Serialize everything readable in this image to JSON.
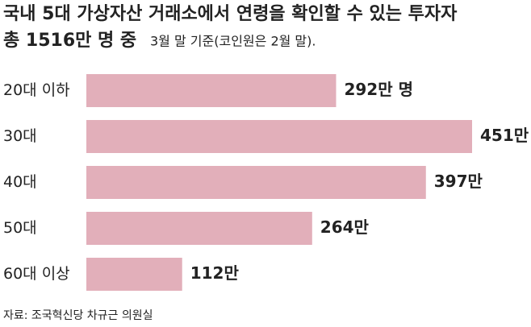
{
  "chart_data": {
    "type": "bar",
    "orientation": "horizontal",
    "title": [
      "국내 5대 가상자산 거래소에서 연령을 확인할 수 있는 투자자",
      "총 1516만 명 중"
    ],
    "subtitle": "3월 말 기준(코인원은 2월 말).",
    "categories": [
      "20대 이하",
      "30대",
      "40대",
      "50대",
      "60대 이상"
    ],
    "values": [
      292,
      451,
      397,
      264,
      112
    ],
    "value_labels": [
      "292만 명",
      "451만",
      "397만",
      "264만",
      "112만"
    ],
    "color": "#e2afba",
    "source": "자료: 조국혁신당 차규근 의원실"
  }
}
